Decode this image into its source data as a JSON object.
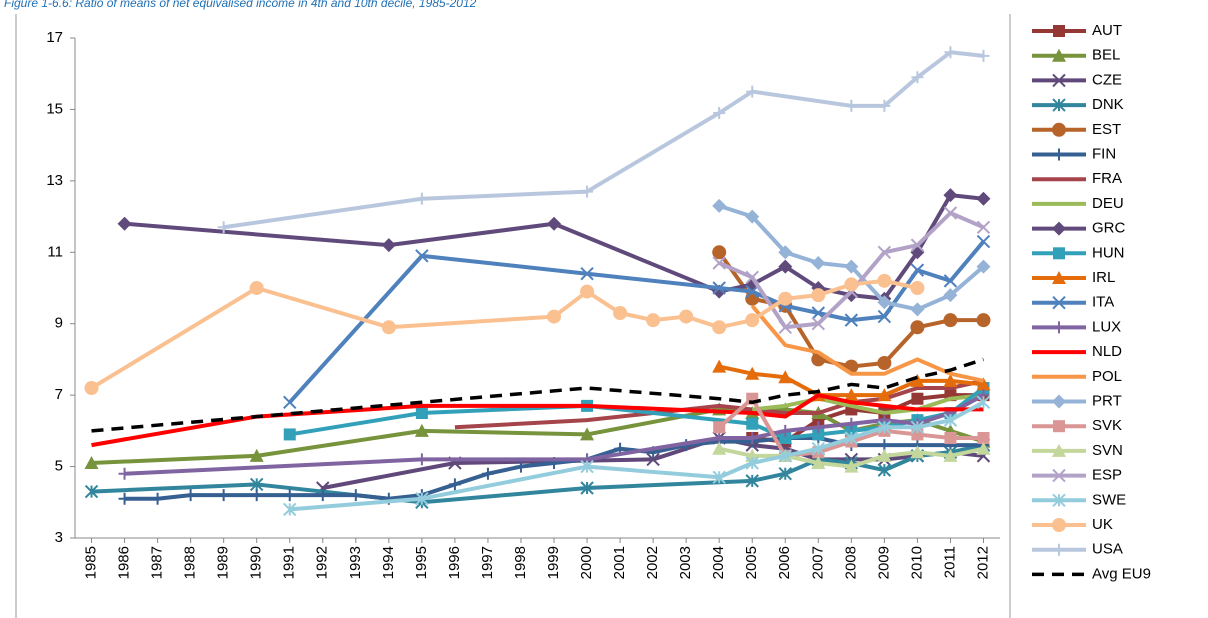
{
  "chart_data": {
    "type": "line",
    "title": "Figure 1-6.6: Ratio of means of net equivalised income in 4th and 10th decile, 1985-2012",
    "xlim": [
      1984.5,
      2012.5
    ],
    "xticks": [
      1985,
      1986,
      1987,
      1988,
      1989,
      1990,
      1991,
      1992,
      1993,
      1994,
      1995,
      1996,
      1997,
      1998,
      1999,
      2000,
      2001,
      2002,
      2003,
      2004,
      2005,
      2006,
      2007,
      2008,
      2009,
      2010,
      2011,
      2012
    ],
    "ylim": [
      3,
      17
    ],
    "yticks": [
      3,
      5,
      7,
      9,
      11,
      13,
      15,
      17
    ],
    "grid": false,
    "legend": "right",
    "series": [
      {
        "name": "AUT",
        "color": "#953735",
        "marker": "square",
        "x": [
          2005,
          2006,
          2007,
          2008,
          2009,
          2010,
          2011,
          2012
        ],
        "values": [
          5.8,
          5.7,
          6.3,
          6.6,
          6.5,
          6.9,
          7.0,
          7.0
        ]
      },
      {
        "name": "BEL",
        "color": "#77933C",
        "marker": "triangle",
        "x": [
          1985,
          1990,
          1995,
          2000,
          2004,
          2005,
          2006,
          2007,
          2008,
          2009,
          2010,
          2011,
          2012
        ],
        "values": [
          5.1,
          5.3,
          6.0,
          5.9,
          6.6,
          6.5,
          6.6,
          6.5,
          6.0,
          6.2,
          6.3,
          6.0,
          5.7
        ]
      },
      {
        "name": "CZE",
        "color": "#60497A",
        "marker": "x",
        "x": [
          1992,
          1996,
          2002,
          2004,
          2005,
          2006,
          2007,
          2008,
          2009,
          2010,
          2011,
          2012
        ],
        "values": [
          4.4,
          5.1,
          5.2,
          5.8,
          5.6,
          5.5,
          5.2,
          5.2,
          5.2,
          5.3,
          5.4,
          5.3
        ]
      },
      {
        "name": "DNK",
        "color": "#31859C",
        "marker": "asterisk",
        "x": [
          1985,
          1990,
          1995,
          2000,
          2005,
          2006,
          2007,
          2008,
          2009,
          2010,
          2011,
          2012
        ],
        "values": [
          4.3,
          4.5,
          4.0,
          4.4,
          4.6,
          4.8,
          5.2,
          5.1,
          4.9,
          5.3,
          5.4,
          5.6
        ]
      },
      {
        "name": "EST",
        "color": "#B7642B",
        "marker": "circle",
        "x": [
          2004,
          2005,
          2006,
          2007,
          2008,
          2009,
          2010,
          2011,
          2012
        ],
        "values": [
          11.0,
          9.7,
          9.5,
          8.0,
          7.8,
          7.9,
          8.9,
          9.1,
          9.1
        ]
      },
      {
        "name": "FIN",
        "color": "#366092",
        "marker": "plus",
        "x": [
          1986,
          1987,
          1988,
          1989,
          1990,
          1991,
          1992,
          1993,
          1994,
          1995,
          1996,
          1997,
          1998,
          1999,
          2000,
          2001,
          2002,
          2003,
          2004,
          2005,
          2006,
          2007,
          2008,
          2009,
          2010,
          2011,
          2012
        ],
        "values": [
          4.1,
          4.1,
          4.2,
          4.2,
          4.2,
          4.2,
          4.2,
          4.2,
          4.1,
          4.2,
          4.5,
          4.8,
          5.0,
          5.1,
          5.2,
          5.5,
          5.4,
          5.6,
          5.7,
          5.7,
          5.8,
          5.8,
          5.6,
          5.6,
          5.6,
          5.6,
          5.6
        ]
      },
      {
        "name": "FRA",
        "color": "#A5444A",
        "marker": "none",
        "x": [
          1996,
          2000,
          2004,
          2005,
          2006,
          2007,
          2008,
          2009,
          2010,
          2011,
          2012
        ],
        "values": [
          6.1,
          6.3,
          6.7,
          6.6,
          6.5,
          6.5,
          6.8,
          6.9,
          7.2,
          7.2,
          7.4
        ]
      },
      {
        "name": "DEU",
        "color": "#9BBB59",
        "marker": "none",
        "x": [
          2005,
          2006,
          2007,
          2008,
          2009,
          2010,
          2011,
          2012
        ],
        "values": [
          6.6,
          6.7,
          6.9,
          6.7,
          6.5,
          6.6,
          6.9,
          7.0
        ]
      },
      {
        "name": "GRC",
        "color": "#604A7B",
        "marker": "diamond",
        "x": [
          1986,
          1994,
          1999,
          2004,
          2005,
          2006,
          2007,
          2008,
          2009,
          2010,
          2011,
          2012
        ],
        "values": [
          11.8,
          11.2,
          11.8,
          9.9,
          10.1,
          10.6,
          10.0,
          9.8,
          9.7,
          11.0,
          12.6,
          12.5
        ]
      },
      {
        "name": "HUN",
        "color": "#31A0B8",
        "marker": "square",
        "x": [
          1991,
          1995,
          2000,
          2005,
          2006,
          2007,
          2008,
          2009,
          2010,
          2011,
          2012
        ],
        "values": [
          5.9,
          6.5,
          6.7,
          6.2,
          5.8,
          5.9,
          6.0,
          6.1,
          6.3,
          6.5,
          7.2
        ]
      },
      {
        "name": "IRL",
        "color": "#E46C0A",
        "marker": "triangle",
        "x": [
          2004,
          2005,
          2006,
          2007,
          2008,
          2009,
          2010,
          2011,
          2012
        ],
        "values": [
          7.8,
          7.6,
          7.5,
          7.0,
          7.0,
          7.0,
          7.4,
          7.4,
          7.3
        ]
      },
      {
        "name": "ITA",
        "color": "#4F81BD",
        "marker": "x",
        "x": [
          1991,
          1995,
          2000,
          2004,
          2005,
          2006,
          2007,
          2008,
          2009,
          2010,
          2011,
          2012
        ],
        "values": [
          6.8,
          10.9,
          10.4,
          10.0,
          9.9,
          9.5,
          9.3,
          9.1,
          9.2,
          10.5,
          10.2,
          11.3
        ]
      },
      {
        "name": "LUX",
        "color": "#8064A2",
        "marker": "plus",
        "x": [
          1986,
          1995,
          2000,
          2004,
          2005,
          2006,
          2007,
          2008,
          2009,
          2010,
          2011,
          2012
        ],
        "values": [
          4.8,
          5.2,
          5.2,
          5.8,
          5.8,
          6.0,
          6.1,
          6.2,
          6.3,
          6.2,
          6.5,
          7.0
        ]
      },
      {
        "name": "NLD",
        "color": "#FF0000",
        "marker": "none",
        "x": [
          1985,
          1990,
          1995,
          2000,
          2005,
          2006,
          2007,
          2008,
          2009,
          2010,
          2011,
          2012
        ],
        "values": [
          5.6,
          6.4,
          6.7,
          6.7,
          6.5,
          6.4,
          7.0,
          6.8,
          6.7,
          6.6,
          6.6,
          6.6
        ]
      },
      {
        "name": "POL",
        "color": "#F79646",
        "marker": "none",
        "x": [
          2005,
          2006,
          2007,
          2008,
          2009,
          2010,
          2011,
          2012
        ],
        "values": [
          9.5,
          8.4,
          8.2,
          7.6,
          7.6,
          8.0,
          7.6,
          7.4
        ]
      },
      {
        "name": "PRT",
        "color": "#95B3D7",
        "marker": "diamond",
        "x": [
          2004,
          2005,
          2006,
          2007,
          2008,
          2009,
          2010,
          2011,
          2012
        ],
        "values": [
          12.3,
          12.0,
          11.0,
          10.7,
          10.6,
          9.6,
          9.4,
          9.8,
          10.6
        ]
      },
      {
        "name": "SVK",
        "color": "#D99694",
        "marker": "square",
        "x": [
          2004,
          2005,
          2006,
          2007,
          2008,
          2009,
          2010,
          2011,
          2012
        ],
        "values": [
          6.1,
          6.9,
          5.3,
          5.4,
          5.7,
          6.0,
          5.9,
          5.8,
          5.8
        ]
      },
      {
        "name": "SVN",
        "color": "#C3D69B",
        "marker": "triangle",
        "x": [
          2004,
          2005,
          2006,
          2007,
          2008,
          2009,
          2010,
          2011,
          2012
        ],
        "values": [
          5.5,
          5.3,
          5.3,
          5.1,
          5.0,
          5.3,
          5.4,
          5.3,
          5.5
        ]
      },
      {
        "name": "ESP",
        "color": "#B3A2C7",
        "marker": "x",
        "x": [
          2004,
          2005,
          2006,
          2007,
          2008,
          2009,
          2010,
          2011,
          2012
        ],
        "values": [
          10.7,
          10.3,
          8.9,
          9.0,
          9.9,
          11.0,
          11.2,
          12.1,
          11.7
        ]
      },
      {
        "name": "SWE",
        "color": "#93CDDD",
        "marker": "asterisk",
        "x": [
          1991,
          1995,
          2000,
          2004,
          2005,
          2006,
          2007,
          2008,
          2009,
          2010,
          2011,
          2012
        ],
        "values": [
          3.8,
          4.1,
          5.0,
          4.7,
          5.1,
          5.3,
          5.5,
          5.8,
          6.1,
          6.1,
          6.3,
          6.8
        ]
      },
      {
        "name": "UK",
        "color": "#FAC090",
        "marker": "circle",
        "x": [
          1985,
          1990,
          1994,
          1999,
          2000,
          2001,
          2002,
          2003,
          2004,
          2005,
          2006,
          2007,
          2008,
          2009,
          2010
        ],
        "values": [
          7.2,
          10.0,
          8.9,
          9.2,
          9.9,
          9.3,
          9.1,
          9.2,
          8.9,
          9.1,
          9.7,
          9.8,
          10.1,
          10.2,
          10.0
        ]
      },
      {
        "name": "USA",
        "color": "#B9C7DE",
        "marker": "plus",
        "x": [
          1989,
          1995,
          2000,
          2004,
          2005,
          2008,
          2009,
          2010,
          2011,
          2012
        ],
        "values": [
          11.7,
          12.5,
          12.7,
          14.9,
          15.5,
          15.1,
          15.1,
          15.9,
          16.6,
          16.5
        ]
      },
      {
        "name": "Avg EU9",
        "color": "#000000",
        "marker": "none",
        "dashed": true,
        "x": [
          1985,
          1990,
          1995,
          2000,
          2004,
          2005,
          2006,
          2007,
          2008,
          2009,
          2010,
          2011,
          2012
        ],
        "values": [
          6.0,
          6.4,
          6.8,
          7.2,
          6.9,
          6.8,
          7.0,
          7.1,
          7.3,
          7.2,
          7.5,
          7.7,
          8.0
        ]
      }
    ]
  }
}
